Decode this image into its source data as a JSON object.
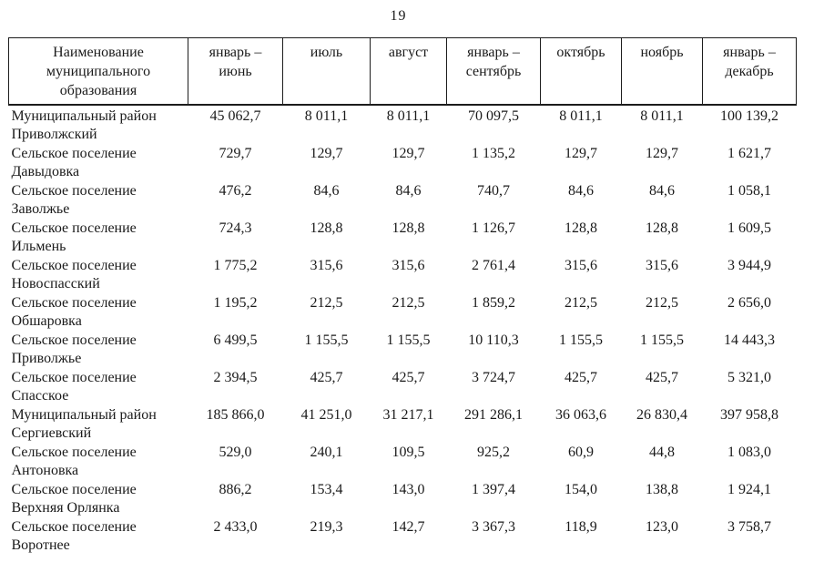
{
  "page": {
    "number": "19"
  },
  "table": {
    "columns": [
      {
        "label": "Наименование\nмуниципального\nобразования"
      },
      {
        "label": "январь –\nиюнь"
      },
      {
        "label": "июль"
      },
      {
        "label": "август"
      },
      {
        "label": "январь –\nсентябрь"
      },
      {
        "label": "октябрь"
      },
      {
        "label": "ноябрь"
      },
      {
        "label": "январь –\nдекабрь"
      }
    ],
    "rows": [
      {
        "name_lines": [
          "Муниципальный район",
          "Приволжский"
        ],
        "values": [
          "45 062,7",
          "8 011,1",
          "8 011,1",
          "70 097,5",
          "8 011,1",
          "8 011,1",
          "100 139,2"
        ]
      },
      {
        "name_lines": [
          "Сельское поселение",
          "Давыдовка"
        ],
        "values": [
          "729,7",
          "129,7",
          "129,7",
          "1 135,2",
          "129,7",
          "129,7",
          "1 621,7"
        ]
      },
      {
        "name_lines": [
          "Сельское поселение",
          "Заволжье"
        ],
        "values": [
          "476,2",
          "84,6",
          "84,6",
          "740,7",
          "84,6",
          "84,6",
          "1 058,1"
        ]
      },
      {
        "name_lines": [
          "Сельское поселение",
          "Ильмень"
        ],
        "values": [
          "724,3",
          "128,8",
          "128,8",
          "1 126,7",
          "128,8",
          "128,8",
          "1 609,5"
        ]
      },
      {
        "name_lines": [
          "Сельское поселение",
          "Новоспасский"
        ],
        "values": [
          "1 775,2",
          "315,6",
          "315,6",
          "2 761,4",
          "315,6",
          "315,6",
          "3 944,9"
        ]
      },
      {
        "name_lines": [
          "Сельское поселение",
          "Обшаровка"
        ],
        "values": [
          "1 195,2",
          "212,5",
          "212,5",
          "1 859,2",
          "212,5",
          "212,5",
          "2 656,0"
        ]
      },
      {
        "name_lines": [
          "Сельское поселение",
          "Приволжье"
        ],
        "values": [
          "6 499,5",
          "1 155,5",
          "1 155,5",
          "10 110,3",
          "1 155,5",
          "1 155,5",
          "14 443,3"
        ]
      },
      {
        "name_lines": [
          "Сельское поселение",
          "Спасское"
        ],
        "values": [
          "2 394,5",
          "425,7",
          "425,7",
          "3 724,7",
          "425,7",
          "425,7",
          "5 321,0"
        ]
      },
      {
        "name_lines": [
          "Муниципальный район",
          "Сергиевский"
        ],
        "values": [
          "185 866,0",
          "41 251,0",
          "31 217,1",
          "291 286,1",
          "36 063,6",
          "26 830,4",
          "397 958,8"
        ]
      },
      {
        "name_lines": [
          "Сельское поселение",
          "Антоновка"
        ],
        "values": [
          "529,0",
          "240,1",
          "109,5",
          "925,2",
          "60,9",
          "44,8",
          "1 083,0"
        ]
      },
      {
        "name_lines": [
          "Сельское поселение",
          "Верхняя Орлянка"
        ],
        "values": [
          "886,2",
          "153,4",
          "143,0",
          "1 397,4",
          "154,0",
          "138,8",
          "1 924,1"
        ]
      },
      {
        "name_lines": [
          "Сельское поселение",
          "Воротнее"
        ],
        "values": [
          "2 433,0",
          "219,3",
          "142,7",
          "3 367,3",
          "118,9",
          "123,0",
          "3 758,7"
        ]
      }
    ]
  }
}
